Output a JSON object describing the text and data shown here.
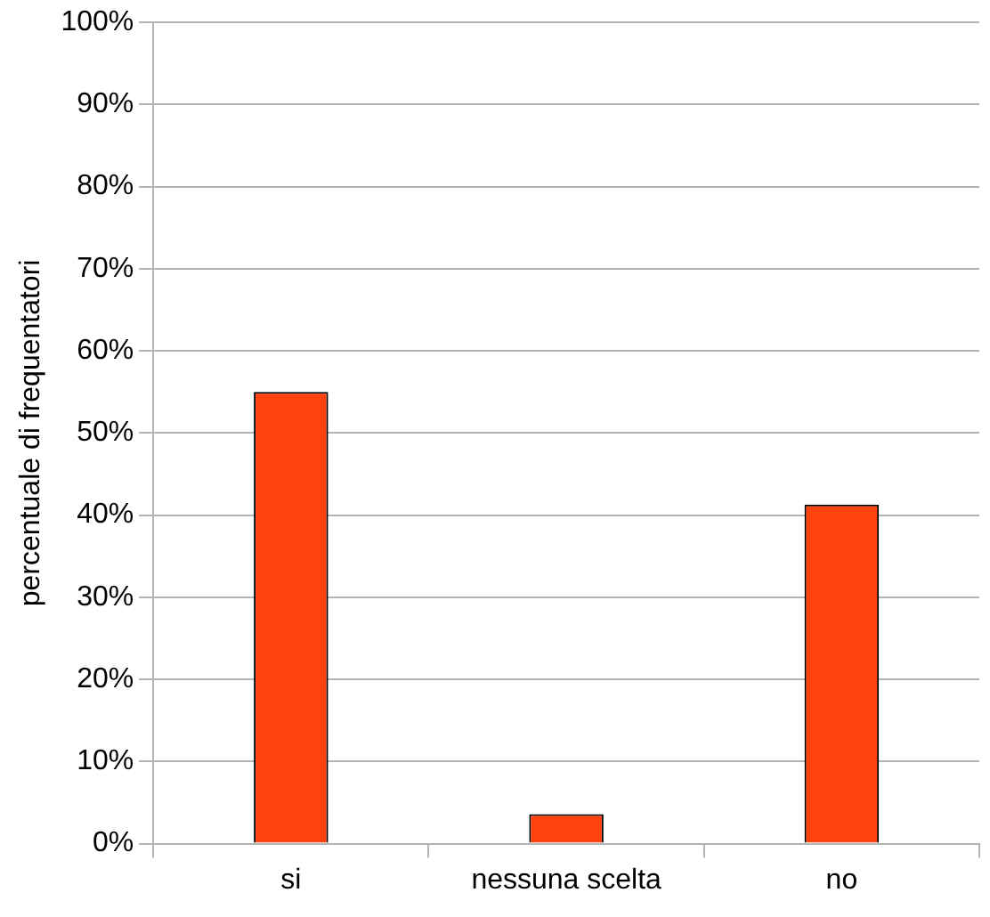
{
  "chart_data": {
    "type": "bar",
    "ylabel": "percentuale di frequentatori",
    "categories": [
      "si",
      "nessuna scelta",
      "no"
    ],
    "values": [
      55,
      3.6,
      41.3
    ],
    "color": "#ff420e",
    "ylim": [
      0,
      100
    ],
    "yticks": [
      {
        "value": 0,
        "label": "0%"
      },
      {
        "value": 10,
        "label": "10%"
      },
      {
        "value": 20,
        "label": "20%"
      },
      {
        "value": 30,
        "label": "30%"
      },
      {
        "value": 40,
        "label": "40%"
      },
      {
        "value": 50,
        "label": "50%"
      },
      {
        "value": 60,
        "label": "60%"
      },
      {
        "value": 70,
        "label": "70%"
      },
      {
        "value": 80,
        "label": "80%"
      },
      {
        "value": 90,
        "label": "90%"
      },
      {
        "value": 100,
        "label": "100%"
      }
    ],
    "grid": "y",
    "legend": false
  }
}
